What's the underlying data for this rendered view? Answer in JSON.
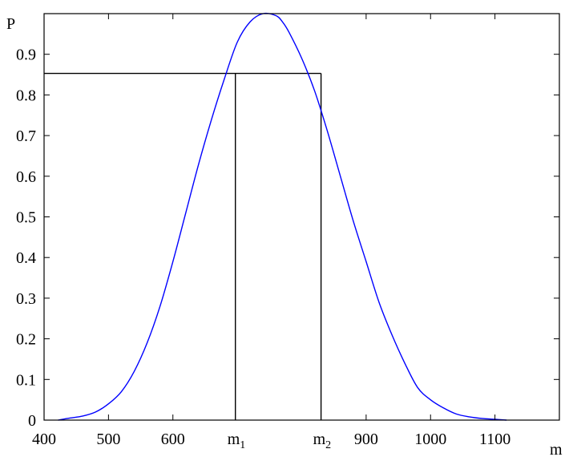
{
  "chart_data": {
    "type": "line",
    "title": "",
    "xlabel": "m",
    "ylabel": "P",
    "xlim": [
      400,
      1200
    ],
    "ylim": [
      0,
      1
    ],
    "grid": false,
    "x_ticks": [
      "400",
      "500",
      "600",
      "900",
      "1000",
      "1100"
    ],
    "y_ticks": [
      "0",
      "0.1",
      "0.2",
      "0.3",
      "0.4",
      "0.5",
      "0.6",
      "0.7",
      "0.8",
      "0.9"
    ],
    "series": [
      {
        "color": "#0000ff",
        "x": [
          422,
          440,
          460,
          480,
          500,
          520,
          540,
          560,
          580,
          600,
          620,
          640,
          660,
          680,
          700,
          720,
          740,
          760,
          770,
          780,
          800,
          820,
          840,
          860,
          880,
          900,
          920,
          940,
          960,
          980,
          1000,
          1020,
          1040,
          1060,
          1080,
          1100,
          1118
        ],
        "y": [
          0.0,
          0.005,
          0.01,
          0.02,
          0.04,
          0.07,
          0.12,
          0.19,
          0.28,
          0.39,
          0.51,
          0.63,
          0.74,
          0.84,
          0.93,
          0.98,
          1.0,
          0.995,
          0.98,
          0.955,
          0.89,
          0.81,
          0.71,
          0.6,
          0.49,
          0.39,
          0.29,
          0.21,
          0.14,
          0.08,
          0.05,
          0.03,
          0.015,
          0.008,
          0.004,
          0.002,
          0.0
        ]
      }
    ],
    "reference_lines": {
      "color": "#000000",
      "level": 0.853,
      "x_start": 400,
      "markers": [
        {
          "x": 697,
          "label": "m",
          "sub": "1"
        },
        {
          "x": 830,
          "label": "m",
          "sub": "2"
        }
      ]
    }
  }
}
